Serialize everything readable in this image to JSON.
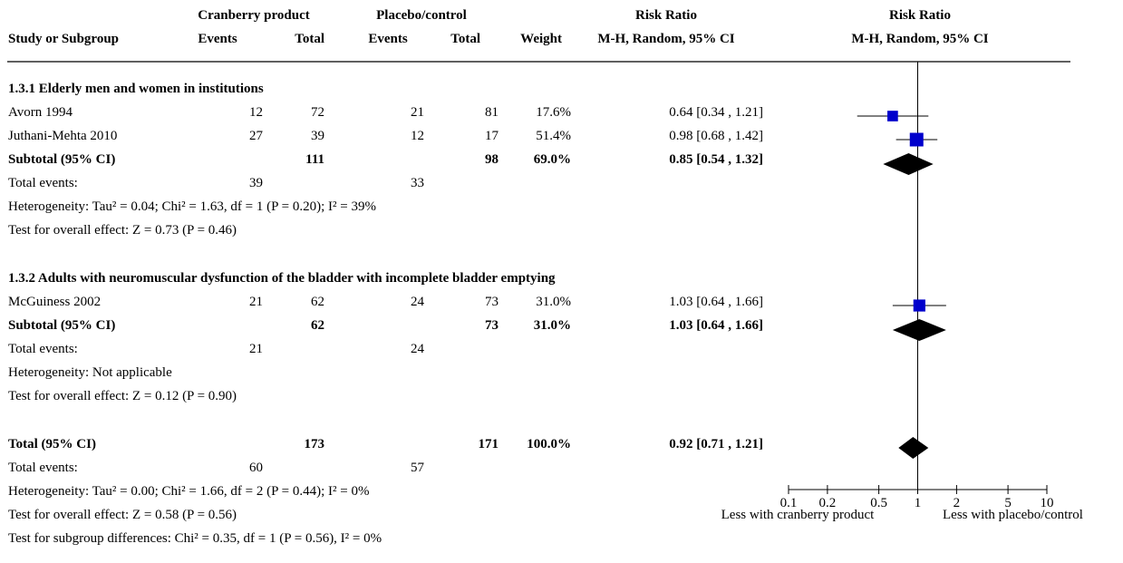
{
  "header": {
    "group1": "Cranberry product",
    "group2": "Placebo/control",
    "rr_title": "Risk Ratio",
    "rr_method": "M-H, Random, 95% CI",
    "plot_title": "Risk Ratio",
    "plot_method": "M-H, Random, 95% CI",
    "col_study": "Study or Subgroup",
    "col_events1": "Events",
    "col_total1": "Total",
    "col_events2": "Events",
    "col_total2": "Total",
    "col_weight": "Weight"
  },
  "subgroups": [
    {
      "title": "1.3.1 Elderly men and women in institutions",
      "studies": [
        {
          "name": "Avorn 1994",
          "e1": "12",
          "t1": "72",
          "e2": "21",
          "t2": "81",
          "weight": "17.6%",
          "ci_text": "0.64 [0.34 , 1.21]"
        },
        {
          "name": "Juthani-Mehta 2010",
          "e1": "27",
          "t1": "39",
          "e2": "12",
          "t2": "17",
          "weight": "51.4%",
          "ci_text": "0.98 [0.68 , 1.42]"
        }
      ],
      "subtotal": {
        "label": "Subtotal (95% CI)",
        "t1": "111",
        "t2": "98",
        "weight": "69.0%",
        "ci_text": "0.85 [0.54 , 1.32]"
      },
      "events": {
        "label": "Total events:",
        "e1": "39",
        "e2": "33"
      },
      "heterogeneity": "Heterogeneity: Tau² = 0.04; Chi² = 1.63, df = 1 (P = 0.20); I² = 39%",
      "overall": "Test for overall effect: Z = 0.73 (P = 0.46)"
    },
    {
      "title": "1.3.2 Adults with neuromuscular dysfunction of the bladder with incomplete bladder emptying",
      "studies": [
        {
          "name": "McGuiness 2002",
          "e1": "21",
          "t1": "62",
          "e2": "24",
          "t2": "73",
          "weight": "31.0%",
          "ci_text": "1.03 [0.64 , 1.66]"
        }
      ],
      "subtotal": {
        "label": "Subtotal (95% CI)",
        "t1": "62",
        "t2": "73",
        "weight": "31.0%",
        "ci_text": "1.03 [0.64 , 1.66]"
      },
      "events": {
        "label": "Total events:",
        "e1": "21",
        "e2": "24"
      },
      "heterogeneity": "Heterogeneity: Not applicable",
      "overall": "Test for overall effect: Z = 0.12 (P = 0.90)"
    }
  ],
  "total": {
    "label": "Total (95% CI)",
    "t1": "173",
    "t2": "171",
    "weight": "100.0%",
    "ci_text": "0.92 [0.71 , 1.21]",
    "events": {
      "label": "Total events:",
      "e1": "60",
      "e2": "57"
    },
    "heterogeneity": "Heterogeneity: Tau² = 0.00; Chi² = 1.66, df = 2 (P = 0.44); I² = 0%",
    "overall": "Test for overall effect: Z = 0.58 (P = 0.56)",
    "subgroup_diff": "Test for subgroup differences: Chi² = 0.35, df = 1 (P = 0.56), I² = 0%"
  },
  "axis": {
    "left_label": "Less with cranberry product",
    "right_label": "Less with placebo/control"
  },
  "chart_data": {
    "type": "forest",
    "scale": "log",
    "xlim": [
      0.1,
      10
    ],
    "ticks": [
      0.1,
      0.2,
      0.5,
      1,
      2,
      5,
      10
    ],
    "tick_labels": [
      "0.1",
      "0.2",
      "0.5",
      "1",
      "2",
      "5",
      "10"
    ],
    "null_line": 1,
    "marker_color": "#0000cc",
    "studies": [
      {
        "name": "Avorn 1994",
        "rr": 0.64,
        "lo": 0.34,
        "hi": 1.21,
        "weight": 17.6
      },
      {
        "name": "Juthani-Mehta 2010",
        "rr": 0.98,
        "lo": 0.68,
        "hi": 1.42,
        "weight": 51.4
      },
      {
        "name": "McGuiness 2002",
        "rr": 1.03,
        "lo": 0.64,
        "hi": 1.66,
        "weight": 31.0
      }
    ],
    "diamonds": [
      {
        "name": "Subtotal 1.3.1",
        "rr": 0.85,
        "lo": 0.54,
        "hi": 1.32
      },
      {
        "name": "Subtotal 1.3.2",
        "rr": 1.03,
        "lo": 0.64,
        "hi": 1.66
      },
      {
        "name": "Total",
        "rr": 0.92,
        "lo": 0.71,
        "hi": 1.21
      }
    ]
  }
}
